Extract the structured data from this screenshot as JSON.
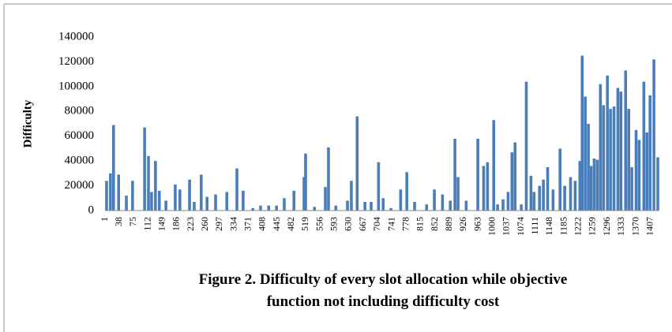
{
  "chart_data": {
    "type": "bar",
    "title": [
      "Figure 2. Difficulty of every slot allocation while objective",
      "function not including difficulty cost"
    ],
    "y_label": "Difficulty",
    "color": "#4a7ebb",
    "grid": false,
    "xlim": [
      1,
      1430
    ],
    "xticks": [
      1,
      38,
      75,
      112,
      149,
      186,
      223,
      260,
      297,
      334,
      371,
      408,
      445,
      482,
      519,
      556,
      593,
      630,
      667,
      704,
      741,
      778,
      815,
      852,
      889,
      926,
      963,
      1000,
      1037,
      1074,
      1111,
      1148,
      1185,
      1222,
      1259,
      1296,
      1333,
      1370,
      1407
    ],
    "ylim": [
      0,
      140000
    ],
    "yticks": [
      0,
      20000,
      40000,
      60000,
      80000,
      100000,
      120000,
      140000
    ],
    "x": [
      5,
      15,
      23,
      36,
      56,
      72,
      103,
      113,
      121,
      131,
      141,
      158,
      182,
      194,
      219,
      231,
      249,
      264,
      286,
      315,
      341,
      357,
      382,
      402,
      423,
      443,
      463,
      488,
      514,
      518,
      541,
      569,
      577,
      596,
      626,
      636,
      651,
      671,
      687,
      706,
      718,
      738,
      763,
      779,
      799,
      830,
      850,
      871,
      891,
      903,
      911,
      932,
      962,
      977,
      987,
      1003,
      1013,
      1027,
      1040,
      1050,
      1058,
      1074,
      1087,
      1099,
      1107,
      1121,
      1131,
      1142,
      1156,
      1174,
      1186,
      1201,
      1213,
      1225,
      1231,
      1239,
      1247,
      1254,
      1262,
      1270,
      1278,
      1286,
      1296,
      1304,
      1313,
      1323,
      1331,
      1343,
      1351,
      1359,
      1370,
      1378,
      1390,
      1398,
      1406,
      1416,
      1426
    ],
    "values": [
      24000,
      30000,
      69000,
      29000,
      12000,
      24000,
      67000,
      44000,
      15000,
      40000,
      16000,
      8000,
      21000,
      17000,
      25000,
      7000,
      29000,
      11000,
      13000,
      15000,
      34000,
      16000,
      2000,
      4000,
      4000,
      4000,
      10000,
      16000,
      27000,
      46000,
      3000,
      19000,
      51000,
      4000,
      8000,
      24000,
      76000,
      7000,
      7000,
      39000,
      10000,
      2000,
      17000,
      31000,
      7000,
      5000,
      17000,
      13000,
      8000,
      58000,
      27000,
      8000,
      58000,
      36000,
      39000,
      73000,
      5000,
      9000,
      15000,
      47000,
      55000,
      5000,
      104000,
      28000,
      15000,
      20000,
      25000,
      35000,
      17000,
      50000,
      20000,
      27000,
      24000,
      40000,
      125000,
      92000,
      70000,
      36000,
      42000,
      41000,
      102000,
      85000,
      109000,
      82000,
      84000,
      99000,
      96000,
      113000,
      82000,
      35000,
      65000,
      57000,
      104000,
      63000,
      93000,
      122000,
      43000
    ]
  }
}
